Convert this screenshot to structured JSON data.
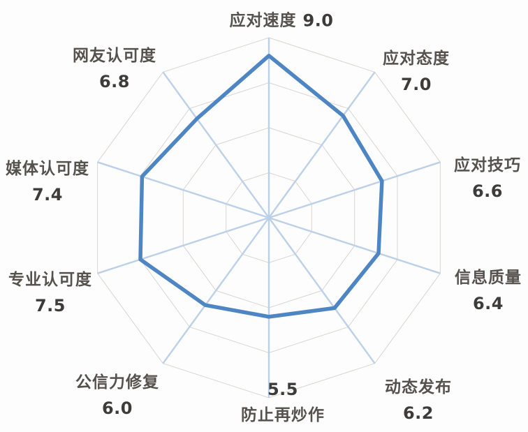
{
  "chart_data": {
    "type": "radar",
    "categories": [
      "应对速度",
      "应对态度",
      "应对技巧",
      "信息质量",
      "动态发布",
      "防止再炒作",
      "公信力修复",
      "专业认可度",
      "媒体认可度",
      "网友认可度"
    ],
    "values": [
      9.0,
      7.0,
      6.6,
      6.4,
      6.2,
      5.5,
      6.0,
      7.5,
      7.4,
      6.8
    ],
    "value_labels": [
      "9.0",
      "7.0",
      "6.6",
      "6.4",
      "6.2",
      "5.5",
      "6.0",
      "7.5",
      "7.4",
      "6.8"
    ],
    "title": "",
    "axis_count": 10,
    "rmin": 0,
    "rmax": 10,
    "ring_values": [
      2.5,
      5.0,
      7.5,
      10.0
    ],
    "start_angle_deg": 90,
    "direction": "clockwise",
    "grid": true,
    "legend": null,
    "fill": "none",
    "colors": {
      "series_line": "#4E86C4",
      "spoke_line": "#BCD0E8",
      "ring_line": "#D9D5D1",
      "label_text": "#55514C",
      "value_text": "#3E3C3A",
      "background": "#FDFDFD"
    }
  }
}
